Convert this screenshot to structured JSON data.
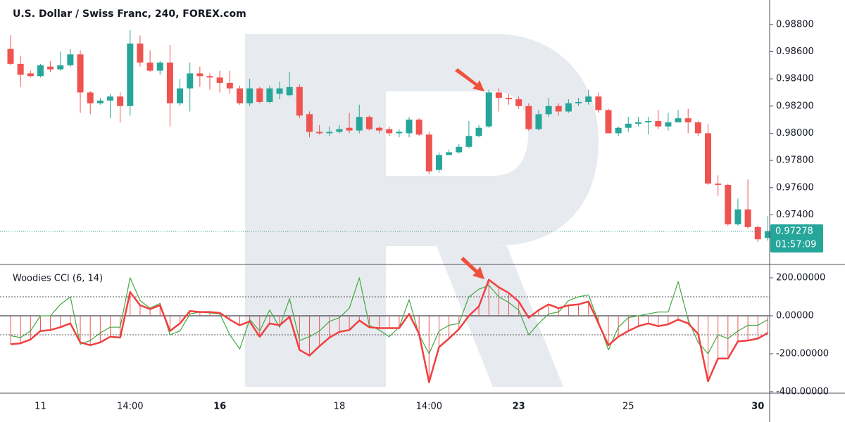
{
  "chart_data": [
    {
      "type": "candlestick",
      "title": "U.S. Dollar / Swiss Franc, 240, FOREX.com",
      "x": [
        null,
        null,
        null,
        "11",
        null,
        null,
        null,
        null,
        null,
        null,
        null,
        null,
        "14:00",
        null,
        null,
        null,
        null,
        null,
        null,
        null,
        null,
        "16",
        null,
        null,
        null,
        null,
        null,
        null,
        null,
        null,
        null,
        null,
        null,
        "18",
        null,
        null,
        null,
        null,
        null,
        null,
        null,
        null,
        "14:00",
        null,
        null,
        null,
        null,
        null,
        null,
        null,
        null,
        "23",
        null,
        null,
        null,
        null,
        null,
        null,
        null,
        null,
        null,
        null,
        "25",
        null,
        null,
        null,
        null,
        null,
        null,
        null,
        null,
        null,
        null,
        null,
        null,
        "30",
        null
      ],
      "open": [
        0.9862,
        0.9851,
        0.9844,
        0.9842,
        0.9849,
        0.9847,
        0.985,
        0.9858,
        0.983,
        0.9822,
        0.9824,
        0.9827,
        0.982,
        0.9866,
        0.9852,
        0.9846,
        0.9852,
        0.9822,
        0.9833,
        0.9844,
        0.9842,
        0.9841,
        0.9837,
        0.9833,
        0.9822,
        0.9833,
        0.9823,
        0.9829,
        0.9828,
        0.9834,
        0.9814,
        0.9801,
        0.98,
        0.9801,
        0.9804,
        0.9802,
        0.9812,
        0.9804,
        0.9803,
        0.98,
        0.98,
        0.981,
        0.9799,
        0.9773,
        0.9784,
        0.9786,
        0.979,
        0.9798,
        0.9805,
        0.983,
        0.9826,
        0.9825,
        0.982,
        0.9803,
        0.9814,
        0.982,
        0.9816,
        0.9822,
        0.9823,
        0.9827,
        0.9817,
        0.98,
        0.9804,
        0.9807,
        0.9808,
        0.9809,
        0.9805,
        0.9808,
        0.9811,
        0.9808,
        0.98,
        0.9763,
        0.9762,
        0.9733,
        0.9744,
        0.9731,
        0.9723
      ],
      "high": [
        0.9872,
        0.9857,
        0.9846,
        0.9851,
        0.9853,
        0.986,
        0.9862,
        0.9861,
        0.9831,
        0.9826,
        0.9829,
        0.983,
        0.9876,
        0.9872,
        0.9861,
        0.9853,
        0.9865,
        0.984,
        0.9852,
        0.9849,
        0.9844,
        0.9846,
        0.9846,
        0.9835,
        0.984,
        0.9834,
        0.9835,
        0.9838,
        0.9845,
        0.9836,
        0.9816,
        0.9806,
        0.9805,
        0.9806,
        0.9815,
        0.9821,
        0.9813,
        0.9805,
        0.9805,
        0.9803,
        0.9812,
        0.9811,
        0.9801,
        0.9786,
        0.9788,
        0.9792,
        0.9809,
        0.9806,
        0.9832,
        0.9833,
        0.9829,
        0.9827,
        0.9822,
        0.9817,
        0.9826,
        0.9822,
        0.9825,
        0.9826,
        0.9832,
        0.983,
        0.9818,
        0.9805,
        0.9812,
        0.9812,
        0.9812,
        0.9817,
        0.9815,
        0.9817,
        0.9818,
        0.9809,
        0.9807,
        0.9769,
        0.9763,
        0.9752,
        0.9766,
        0.9732,
        0.9739
      ],
      "low": [
        0.985,
        0.9834,
        0.9841,
        0.9841,
        0.9845,
        0.9846,
        0.9849,
        0.9815,
        0.9814,
        0.9821,
        0.9811,
        0.9808,
        0.9813,
        0.9849,
        0.9845,
        0.9843,
        0.9805,
        0.982,
        0.9816,
        0.9834,
        0.9832,
        0.983,
        0.9829,
        0.9821,
        0.982,
        0.9822,
        0.9822,
        0.9825,
        0.9827,
        0.9811,
        0.9797,
        0.9799,
        0.9798,
        0.98,
        0.98,
        0.98,
        0.9802,
        0.98,
        0.9798,
        0.9797,
        0.9797,
        0.9798,
        0.977,
        0.9771,
        0.9784,
        0.9785,
        0.9789,
        0.9797,
        0.9804,
        0.9816,
        0.9821,
        0.9818,
        0.9802,
        0.9802,
        0.9812,
        0.9813,
        0.9815,
        0.982,
        0.9821,
        0.9815,
        0.98,
        0.9798,
        0.9801,
        0.9805,
        0.9799,
        0.9803,
        0.9802,
        0.9808,
        0.98,
        0.9798,
        0.9762,
        0.9754,
        0.9732,
        0.9732,
        0.973,
        0.972,
        0.9721
      ],
      "close": [
        0.9851,
        0.9843,
        0.9842,
        0.985,
        0.9847,
        0.985,
        0.9858,
        0.983,
        0.9822,
        0.9824,
        0.9827,
        0.982,
        0.9866,
        0.9852,
        0.9846,
        0.9852,
        0.9822,
        0.9833,
        0.9844,
        0.9842,
        0.9841,
        0.9837,
        0.9833,
        0.9822,
        0.9833,
        0.9823,
        0.9833,
        0.9833,
        0.9834,
        0.9813,
        0.9801,
        0.98,
        0.9801,
        0.9803,
        0.9802,
        0.9812,
        0.9803,
        0.9802,
        0.98,
        0.9801,
        0.981,
        0.9799,
        0.9772,
        0.9784,
        0.9786,
        0.979,
        0.9798,
        0.9804,
        0.983,
        0.9826,
        0.9825,
        0.982,
        0.9803,
        0.9814,
        0.982,
        0.9816,
        0.9822,
        0.9823,
        0.9827,
        0.9817,
        0.98,
        0.9804,
        0.9807,
        0.9808,
        0.9809,
        0.9805,
        0.9808,
        0.9811,
        0.9808,
        0.98,
        0.9763,
        0.9762,
        0.9733,
        0.9744,
        0.9731,
        0.9722,
        0.9728
      ],
      "up_color": "#26a69a",
      "down_color": "#ef5350",
      "ylim": [
        0.9704,
        0.9898
      ],
      "yticks": [
        {
          "value": 0.988,
          "label": "0.98800"
        },
        {
          "value": 0.986,
          "label": "0.98600"
        },
        {
          "value": 0.984,
          "label": "0.98400"
        },
        {
          "value": 0.982,
          "label": "0.98200"
        },
        {
          "value": 0.98,
          "label": "0.98000"
        },
        {
          "value": 0.978,
          "label": "0.97800"
        },
        {
          "value": 0.976,
          "label": "0.97600"
        },
        {
          "value": 0.974,
          "label": "0.97400"
        }
      ],
      "last_price": 0.97278,
      "countdown": "01:57:09"
    },
    {
      "type": "line",
      "title": "Woodies CCI (6, 14)",
      "series": [
        {
          "name": "CCI 6",
          "color": "#43a843",
          "values": [
            -105,
            -115,
            -80,
            0,
            0,
            60,
            100,
            -150,
            -130,
            -90,
            -60,
            -60,
            200,
            80,
            40,
            65,
            -100,
            -80,
            10,
            20,
            15,
            10,
            -100,
            -175,
            -20,
            -80,
            30,
            -60,
            90,
            -130,
            -110,
            -80,
            -30,
            -10,
            40,
            200,
            -50,
            -75,
            -110,
            -60,
            85,
            -100,
            -200,
            -80,
            -50,
            -40,
            100,
            140,
            160,
            100,
            70,
            30,
            -100,
            -40,
            10,
            20,
            80,
            100,
            110,
            -30,
            -180,
            -60,
            -10,
            0,
            10,
            20,
            20,
            180,
            -20,
            -140,
            -200,
            -100,
            -120,
            -80,
            -50,
            -50,
            -20
          ]
        },
        {
          "name": "CCI 14",
          "color": "#f23f3f",
          "values": [
            -150,
            -145,
            -125,
            -80,
            -75,
            -60,
            -40,
            -140,
            -155,
            -140,
            -110,
            -115,
            125,
            55,
            35,
            55,
            -80,
            -40,
            25,
            20,
            20,
            15,
            -20,
            -50,
            -30,
            -110,
            -40,
            -50,
            -5,
            -180,
            -210,
            -160,
            -115,
            -85,
            -75,
            -25,
            -60,
            -65,
            -65,
            -65,
            10,
            -95,
            -350,
            -165,
            -120,
            -70,
            0,
            50,
            190,
            150,
            120,
            75,
            -10,
            30,
            60,
            40,
            55,
            60,
            75,
            -40,
            -155,
            -110,
            -80,
            -55,
            -40,
            -55,
            -45,
            -20,
            -40,
            -95,
            -345,
            -225,
            -225,
            -135,
            -130,
            -120,
            -90
          ]
        }
      ],
      "histogram_color": "#ef5350",
      "levels": [
        100,
        -100
      ],
      "ylim": [
        -404,
        263
      ],
      "yticks": [
        {
          "value": 200,
          "label": "200.00000"
        },
        {
          "value": 0,
          "label": "0.00000"
        },
        {
          "value": -200,
          "label": "-200.00000"
        },
        {
          "value": -400,
          "label": "-400.00000"
        }
      ]
    }
  ]
}
